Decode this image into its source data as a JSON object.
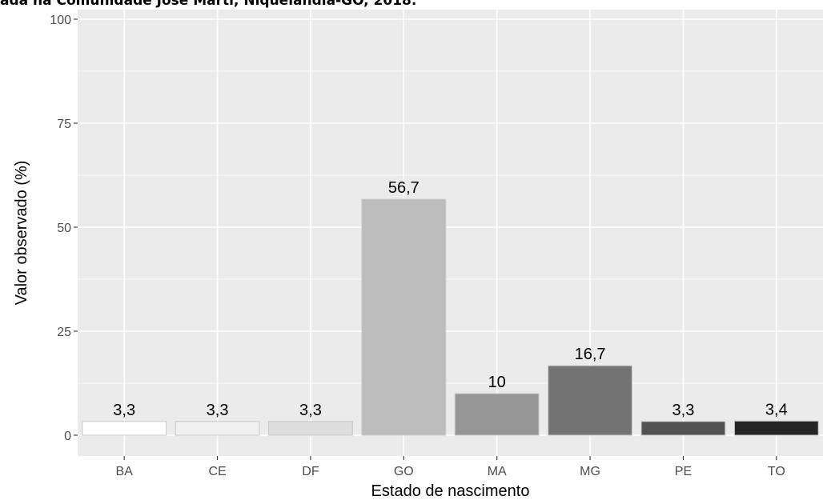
{
  "title": "ada na Comunidade José Martí, Niquelândia-GO, 2018.",
  "chart_data": {
    "type": "bar",
    "categories": [
      "BA",
      "CE",
      "DF",
      "GO",
      "MA",
      "MG",
      "PE",
      "TO"
    ],
    "values": [
      3.3,
      3.3,
      3.3,
      56.7,
      10,
      16.7,
      3.3,
      3.4
    ],
    "value_labels": [
      "3,3",
      "3,3",
      "3,3",
      "56,7",
      "10",
      "16,7",
      "3,3",
      "3,4"
    ],
    "bar_colors": [
      "#ffffff",
      "#f0f0f0",
      "#dddddd",
      "#bdbdbd",
      "#969696",
      "#737373",
      "#525252",
      "#252525"
    ],
    "bar_outline": "#c8c8c8",
    "xlabel": "Estado de nascimento",
    "ylabel": "Valor observado (%)",
    "ylim": [
      0,
      100
    ],
    "yticks": [
      0,
      25,
      50,
      75,
      100
    ],
    "yticklabels": [
      "0",
      "25",
      "50",
      "75",
      "100"
    ],
    "grid": true,
    "panel_background": "#ebebeb",
    "grid_color": "#ffffff"
  }
}
